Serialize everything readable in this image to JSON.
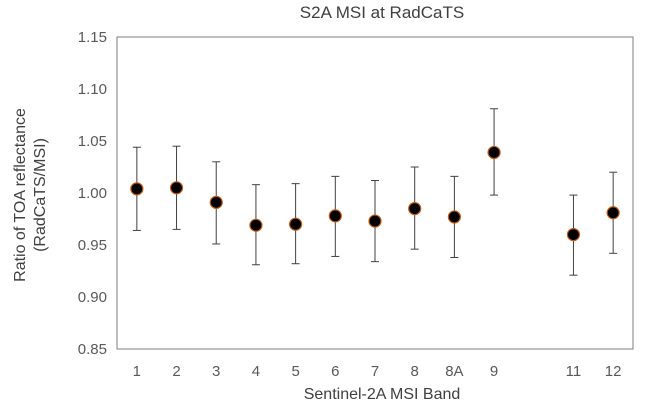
{
  "chart_data": {
    "type": "scatter",
    "title": "S2A MSI at RadCaTS",
    "xlabel": "Sentinel-2A MSI Band",
    "ylabel_lines": [
      "Ratio of TOA  reflectance",
      "(RadCaTS/MSI)"
    ],
    "ylim": [
      0.85,
      1.15
    ],
    "yticks": [
      "0.85",
      "0.90",
      "0.95",
      "1.00",
      "1.05",
      "1.10",
      "1.15"
    ],
    "grid": false,
    "legend": "none",
    "categories": [
      "1",
      "2",
      "3",
      "4",
      "5",
      "6",
      "7",
      "8",
      "8A",
      "9",
      "",
      "11",
      "12"
    ],
    "points": [
      {
        "band": "1",
        "value": 1.004,
        "error_low": 0.964,
        "error_high": 1.044
      },
      {
        "band": "2",
        "value": 1.005,
        "error_low": 0.965,
        "error_high": 1.045
      },
      {
        "band": "3",
        "value": 0.991,
        "error_low": 0.951,
        "error_high": 1.03
      },
      {
        "band": "4",
        "value": 0.969,
        "error_low": 0.931,
        "error_high": 1.008
      },
      {
        "band": "5",
        "value": 0.97,
        "error_low": 0.932,
        "error_high": 1.009
      },
      {
        "band": "6",
        "value": 0.978,
        "error_low": 0.939,
        "error_high": 1.016
      },
      {
        "band": "7",
        "value": 0.973,
        "error_low": 0.934,
        "error_high": 1.012
      },
      {
        "band": "8",
        "value": 0.985,
        "error_low": 0.946,
        "error_high": 1.025
      },
      {
        "band": "8A",
        "value": 0.977,
        "error_low": 0.938,
        "error_high": 1.016
      },
      {
        "band": "9",
        "value": 1.039,
        "error_low": 0.998,
        "error_high": 1.081
      },
      {
        "band": "11",
        "value": 0.96,
        "error_low": 0.921,
        "error_high": 0.998
      },
      {
        "band": "12",
        "value": 0.981,
        "error_low": 0.942,
        "error_high": 1.02
      }
    ],
    "colors": {
      "marker_fill": "#000000",
      "marker_edge": "#c55a11",
      "error_bar": "#404040",
      "axis": "#7f7f7f",
      "text": "#404040"
    }
  }
}
